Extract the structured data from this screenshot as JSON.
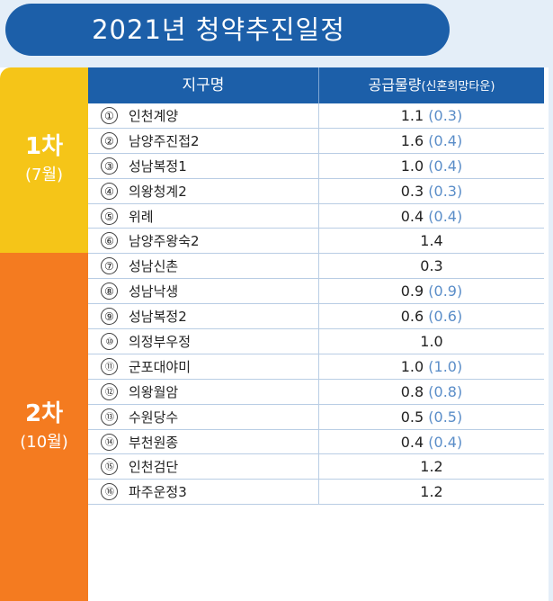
{
  "title": "2021년 청약추진일정",
  "header": {
    "district_col": "지구명",
    "supply_col": "공급물량",
    "supply_note": "(신혼희망타운)"
  },
  "phases": [
    {
      "name": "1차",
      "period": "(7월)",
      "color": "#f5c518"
    },
    {
      "name": "2차",
      "period": "(10월)",
      "color": "#f47b20"
    }
  ],
  "rows": [
    {
      "no": "①",
      "name": "인천계양",
      "supply": "1.1",
      "newlywed": "(0.3)"
    },
    {
      "no": "②",
      "name": "남양주진접2",
      "supply": "1.6",
      "newlywed": "(0.4)"
    },
    {
      "no": "③",
      "name": "성남복정1",
      "supply": "1.0",
      "newlywed": "(0.4)"
    },
    {
      "no": "④",
      "name": "의왕청계2",
      "supply": "0.3",
      "newlywed": "(0.3)"
    },
    {
      "no": "⑤",
      "name": "위례",
      "supply": "0.4",
      "newlywed": "(0.4)"
    },
    {
      "no": "⑥",
      "name": "남양주왕숙2",
      "supply": "1.4",
      "newlywed": ""
    },
    {
      "no": "⑦",
      "name": "성남신촌",
      "supply": "0.3",
      "newlywed": ""
    },
    {
      "no": "⑧",
      "name": "성남낙생",
      "supply": "0.9",
      "newlywed": "(0.9)"
    },
    {
      "no": "⑨",
      "name": "성남복정2",
      "supply": "0.6",
      "newlywed": "(0.6)"
    },
    {
      "no": "⑩",
      "name": "의정부우정",
      "supply": "1.0",
      "newlywed": ""
    },
    {
      "no": "⑪",
      "name": "군포대야미",
      "supply": "1.0",
      "newlywed": "(1.0)"
    },
    {
      "no": "⑫",
      "name": "의왕월암",
      "supply": "0.8",
      "newlywed": "(0.8)"
    },
    {
      "no": "⑬",
      "name": "수원당수",
      "supply": "0.5",
      "newlywed": "(0.5)"
    },
    {
      "no": "⑭",
      "name": "부천원종",
      "supply": "0.4",
      "newlywed": "(0.4)"
    },
    {
      "no": "⑮",
      "name": "인천검단",
      "supply": "1.2",
      "newlywed": ""
    },
    {
      "no": "⑯",
      "name": "파주운정3",
      "supply": "1.2",
      "newlywed": ""
    }
  ]
}
